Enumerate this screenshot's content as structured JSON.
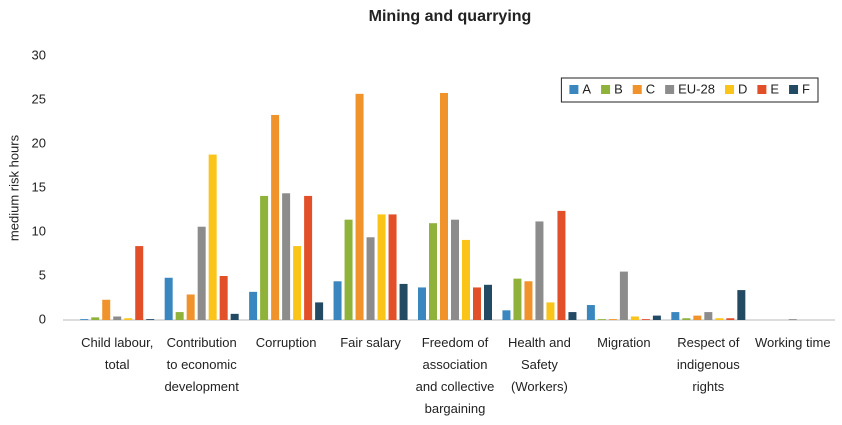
{
  "chart_data": {
    "type": "bar",
    "title": "Mining and quarrying",
    "y_label": "medium risk hours",
    "categories": [
      "Child labour, total",
      "Contribution to economic development",
      "Corruption",
      "Fair salary",
      "Freedom of association and collective bargaining",
      "Health and Safety (Workers)",
      "Migration",
      "Respect of indigenous rights",
      "Working time"
    ],
    "series": [
      {
        "name": "A",
        "color": "#3a87c0",
        "values": [
          0.1,
          4.8,
          3.2,
          4.4,
          3.7,
          1.1,
          1.7,
          0.9,
          0
        ]
      },
      {
        "name": "B",
        "color": "#8fb33a",
        "values": [
          0.3,
          0.9,
          14.1,
          11.4,
          11.0,
          4.7,
          0.1,
          0.2,
          0
        ]
      },
      {
        "name": "C",
        "color": "#f0932a",
        "values": [
          2.3,
          2.9,
          23.3,
          25.7,
          25.8,
          4.4,
          0.1,
          0.5,
          0
        ]
      },
      {
        "name": "EU-28",
        "color": "#8c8c8c",
        "values": [
          0.4,
          10.6,
          14.4,
          9.4,
          11.4,
          11.2,
          5.5,
          0.9,
          0.1
        ]
      },
      {
        "name": "D",
        "color": "#fbc418",
        "values": [
          0.2,
          18.8,
          8.4,
          12.0,
          9.1,
          2.0,
          0.4,
          0.2,
          0
        ]
      },
      {
        "name": "E",
        "color": "#e2502a",
        "values": [
          8.4,
          5.0,
          14.1,
          12.0,
          3.7,
          12.4,
          0.1,
          0.2,
          0
        ]
      },
      {
        "name": "F",
        "color": "#234a63",
        "values": [
          0.1,
          0.7,
          2.0,
          4.1,
          4.0,
          0.9,
          0.5,
          3.4,
          0
        ]
      }
    ],
    "ylim": [
      0,
      30
    ],
    "yticks": [
      0,
      5,
      10,
      15,
      20,
      25,
      30
    ],
    "grid": false,
    "legend": "top-right"
  }
}
